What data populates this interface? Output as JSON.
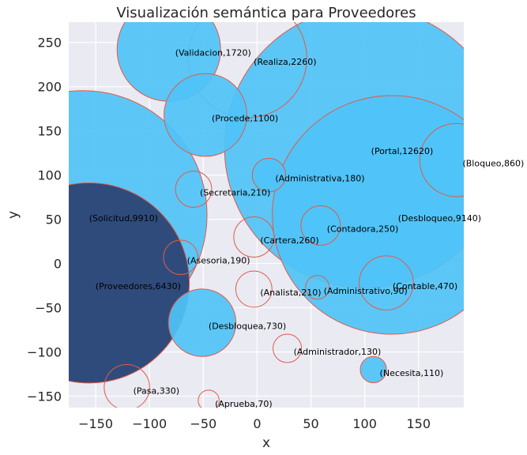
{
  "chart_data": {
    "type": "scatter",
    "title": "Visualización semántica para Proveedores",
    "xlabel": "x",
    "ylabel": "y",
    "xlim": [
      -175,
      192
    ],
    "ylim": [
      -163,
      273
    ],
    "xticks": [
      -150,
      -100,
      -50,
      0,
      50,
      100,
      150
    ],
    "yticks": [
      -150,
      -100,
      -50,
      0,
      50,
      100,
      150,
      200,
      250
    ],
    "xtick_labels": [
      "−150",
      "−100",
      "−50",
      "0",
      "50",
      "100",
      "150"
    ],
    "ytick_labels": [
      "−150",
      "−100",
      "−50",
      "0",
      "50",
      "100",
      "150",
      "200",
      "250"
    ],
    "grid": true,
    "points": [
      {
        "label": "(Validacion,1720)",
        "word": "Validacion",
        "x": -82,
        "y": 242,
        "size": 1720,
        "style": "filled"
      },
      {
        "label": "(Realiza,2260)",
        "word": "Realiza",
        "x": -9,
        "y": 232,
        "size": 2260,
        "style": "hollow"
      },
      {
        "label": "(Procede,1100)",
        "word": "Procede",
        "x": -48,
        "y": 168,
        "size": 1100,
        "style": "filled"
      },
      {
        "label": "(Portal,12620)",
        "word": "Portal",
        "x": 100,
        "y": 131,
        "size": 12620,
        "style": "filled"
      },
      {
        "label": "(Bloqueo,860)",
        "word": "Bloqueo",
        "x": 185,
        "y": 117,
        "size": 860,
        "style": "filled"
      },
      {
        "label": "(Administrativa,180)",
        "word": "Administrativa",
        "x": 11,
        "y": 100,
        "size": 180,
        "style": "filled"
      },
      {
        "label": "(Secretaria,210)",
        "word": "Secretaria",
        "x": -59,
        "y": 84,
        "size": 210,
        "style": "hollow"
      },
      {
        "label": "(Solicitud,9910)",
        "word": "Solicitud",
        "x": -162,
        "y": 55,
        "size": 9910,
        "style": "filled"
      },
      {
        "label": "(Desbloqueo,9140)",
        "word": "Desbloqueo",
        "x": 125,
        "y": 55,
        "size": 9140,
        "style": "filled"
      },
      {
        "label": "(Contadora,250)",
        "word": "Contadora",
        "x": 59,
        "y": 43,
        "size": 250,
        "style": "filled"
      },
      {
        "label": "(Cartera,260)",
        "word": "Cartera",
        "x": -3,
        "y": 30,
        "size": 260,
        "style": "hollow"
      },
      {
        "label": "(Asesoria,190)",
        "word": "Asesoria",
        "x": -71,
        "y": 7,
        "size": 190,
        "style": "hollow"
      },
      {
        "label": "(Proveedores,6430)",
        "word": "Proveedores",
        "x": -156,
        "y": -22,
        "size": 6430,
        "style": "dark"
      },
      {
        "label": "(Contable,470)",
        "word": "Contable",
        "x": 120,
        "y": -22,
        "size": 470,
        "style": "hollow"
      },
      {
        "label": "(Administrativo,90)",
        "word": "Administrativo",
        "x": 56,
        "y": -27,
        "size": 90,
        "style": "hollow"
      },
      {
        "label": "(Analista,210)",
        "word": "Analista",
        "x": -3,
        "y": -29,
        "size": 210,
        "style": "hollow"
      },
      {
        "label": "(Desbloquea,730)",
        "word": "Desbloquea",
        "x": -51,
        "y": -67,
        "size": 730,
        "style": "filled"
      },
      {
        "label": "(Administrador,130)",
        "word": "Administrador",
        "x": 28,
        "y": -96,
        "size": 130,
        "style": "hollow"
      },
      {
        "label": "(Necesita,110)",
        "word": "Necesita",
        "x": 108,
        "y": -120,
        "size": 110,
        "style": "filled"
      },
      {
        "label": "(Pasa,330)",
        "word": "Pasa",
        "x": -121,
        "y": -140,
        "size": 330,
        "style": "hollow"
      },
      {
        "label": "(Aprueba,70)",
        "word": "Aprueba",
        "x": -45,
        "y": -155,
        "size": 70,
        "style": "hollow"
      }
    ]
  },
  "colors": {
    "background": "#eaeaf2",
    "grid": "#ffffff",
    "filled": "#4fc3f7",
    "dark": "#2f4b7c",
    "edge": "#e05a47",
    "text": "#262626"
  }
}
